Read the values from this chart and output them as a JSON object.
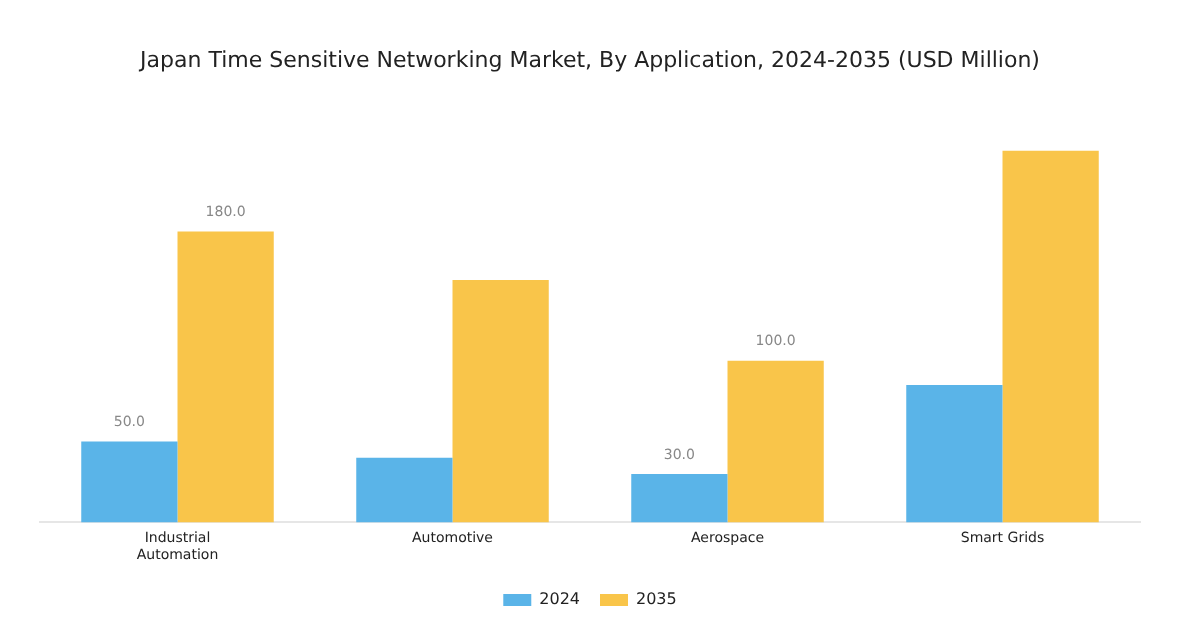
{
  "chart_data": {
    "type": "bar",
    "title": "Japan Time Sensitive Networking Market, By Application, 2024-2035 (USD Million)",
    "categories": [
      "Industrial Automation",
      "Automotive",
      "Aerospace",
      "Smart Grids"
    ],
    "series": [
      {
        "name": "2024",
        "color": "#5ab4e8",
        "values": [
          50,
          40,
          30,
          85
        ],
        "value_labels": [
          "50.0",
          null,
          "30.0",
          null
        ]
      },
      {
        "name": "2035",
        "color": "#f9c54a",
        "values": [
          180,
          150,
          100,
          230
        ],
        "value_labels": [
          "180.0",
          null,
          "100.0",
          null
        ]
      }
    ],
    "legend": "bottom",
    "grid": false
  }
}
